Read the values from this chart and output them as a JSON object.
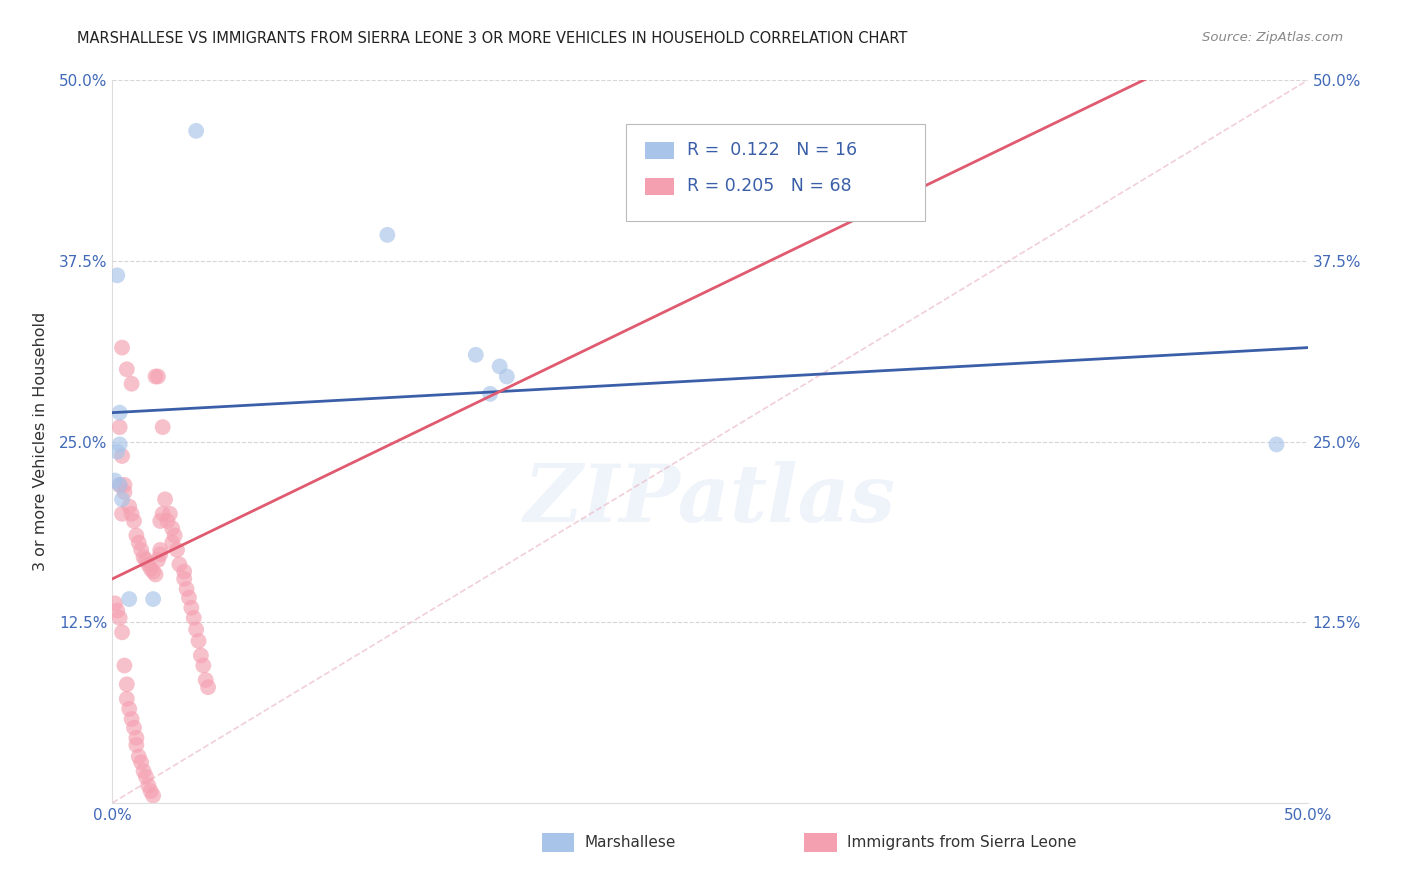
{
  "title": "MARSHALLESE VS IMMIGRANTS FROM SIERRA LEONE 3 OR MORE VEHICLES IN HOUSEHOLD CORRELATION CHART",
  "source": "Source: ZipAtlas.com",
  "ylabel": "3 or more Vehicles in Household",
  "xlim": [
    0.0,
    0.5
  ],
  "ylim": [
    0.0,
    0.5
  ],
  "legend_labels": [
    "Marshallese",
    "Immigrants from Sierra Leone"
  ],
  "blue_R": "0.122",
  "blue_N": "16",
  "pink_R": "0.205",
  "pink_N": "68",
  "blue_color": "#a8c4e8",
  "pink_color": "#f4a0b0",
  "blue_line_color": "#3a5fa8",
  "pink_line_color": "#e05a70",
  "diag_line_color": "#e8b0be",
  "background_color": "#ffffff",
  "blue_scatter_x": [
    0.035,
    0.002,
    0.003,
    0.115,
    0.152,
    0.158,
    0.165,
    0.162,
    0.003,
    0.487,
    0.001,
    0.003,
    0.004,
    0.007,
    0.017,
    0.002
  ],
  "blue_scatter_y": [
    0.465,
    0.365,
    0.27,
    0.393,
    0.31,
    0.283,
    0.295,
    0.302,
    0.248,
    0.248,
    0.223,
    0.22,
    0.21,
    0.141,
    0.141,
    0.243
  ],
  "pink_scatter_x": [
    0.004,
    0.006,
    0.008,
    0.003,
    0.004,
    0.003,
    0.004,
    0.005,
    0.005,
    0.007,
    0.008,
    0.009,
    0.01,
    0.011,
    0.012,
    0.013,
    0.014,
    0.015,
    0.016,
    0.017,
    0.018,
    0.019,
    0.02,
    0.02,
    0.021,
    0.022,
    0.023,
    0.024,
    0.025,
    0.025,
    0.026,
    0.027,
    0.028,
    0.03,
    0.03,
    0.031,
    0.032,
    0.033,
    0.034,
    0.035,
    0.036,
    0.037,
    0.038,
    0.039,
    0.04,
    0.001,
    0.002,
    0.003,
    0.004,
    0.005,
    0.006,
    0.006,
    0.007,
    0.008,
    0.009,
    0.01,
    0.01,
    0.011,
    0.012,
    0.013,
    0.014,
    0.015,
    0.016,
    0.017,
    0.018,
    0.019,
    0.02,
    0.021
  ],
  "pink_scatter_y": [
    0.315,
    0.3,
    0.29,
    0.26,
    0.24,
    0.22,
    0.2,
    0.22,
    0.215,
    0.205,
    0.2,
    0.195,
    0.185,
    0.18,
    0.175,
    0.17,
    0.168,
    0.165,
    0.162,
    0.16,
    0.158,
    0.168,
    0.175,
    0.195,
    0.2,
    0.21,
    0.195,
    0.2,
    0.18,
    0.19,
    0.185,
    0.175,
    0.165,
    0.16,
    0.155,
    0.148,
    0.142,
    0.135,
    0.128,
    0.12,
    0.112,
    0.102,
    0.095,
    0.085,
    0.08,
    0.138,
    0.133,
    0.128,
    0.118,
    0.095,
    0.082,
    0.072,
    0.065,
    0.058,
    0.052,
    0.045,
    0.04,
    0.032,
    0.028,
    0.022,
    0.018,
    0.012,
    0.008,
    0.005,
    0.295,
    0.295,
    0.172,
    0.26
  ],
  "blue_line_x0": 0.0,
  "blue_line_y0": 0.27,
  "blue_line_x1": 0.5,
  "blue_line_y1": 0.315,
  "pink_line_x0": 0.0,
  "pink_line_y0": 0.155,
  "pink_line_x1": 0.05,
  "pink_line_y1": 0.195,
  "watermark_text": "ZIPatlas",
  "grid_color": "#cccccc"
}
